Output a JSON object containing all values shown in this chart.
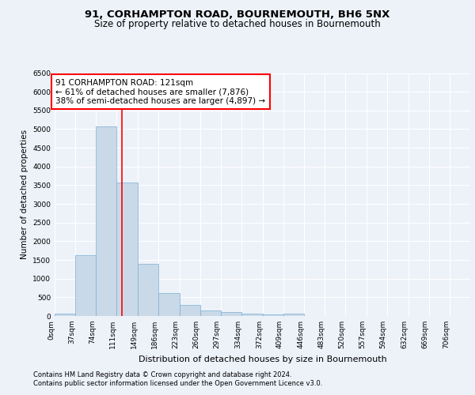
{
  "title_line1": "91, CORHAMPTON ROAD, BOURNEMOUTH, BH6 5NX",
  "title_line2": "Size of property relative to detached houses in Bournemouth",
  "xlabel": "Distribution of detached houses by size in Bournemouth",
  "ylabel": "Number of detached properties",
  "bar_edges": [
    0,
    37,
    74,
    111,
    149,
    186,
    223,
    260,
    297,
    334,
    372,
    409,
    446,
    483,
    520,
    557,
    594,
    632,
    669,
    706,
    743
  ],
  "bar_heights": [
    70,
    1620,
    5070,
    3580,
    1400,
    620,
    300,
    150,
    100,
    55,
    45,
    55,
    0,
    0,
    0,
    0,
    0,
    0,
    0,
    0
  ],
  "bar_color": "#c9d9e8",
  "bar_edge_color": "#7bafd4",
  "vline_x": 121,
  "vline_color": "red",
  "annotation_text": "91 CORHAMPTON ROAD: 121sqm\n← 61% of detached houses are smaller (7,876)\n38% of semi-detached houses are larger (4,897) →",
  "annotation_box_color": "white",
  "annotation_box_edge_color": "red",
  "ylim": [
    0,
    6500
  ],
  "yticks": [
    0,
    500,
    1000,
    1500,
    2000,
    2500,
    3000,
    3500,
    4000,
    4500,
    5000,
    5500,
    6000,
    6500
  ],
  "background_color": "#edf2f9",
  "plot_bg_color": "#edf2f9",
  "footer_line1": "Contains HM Land Registry data © Crown copyright and database right 2024.",
  "footer_line2": "Contains public sector information licensed under the Open Government Licence v3.0.",
  "title_fontsize": 9.5,
  "subtitle_fontsize": 8.5,
  "tick_label_fontsize": 6.5,
  "xlabel_fontsize": 8,
  "ylabel_fontsize": 7.5,
  "annotation_fontsize": 7.5,
  "footer_fontsize": 6
}
